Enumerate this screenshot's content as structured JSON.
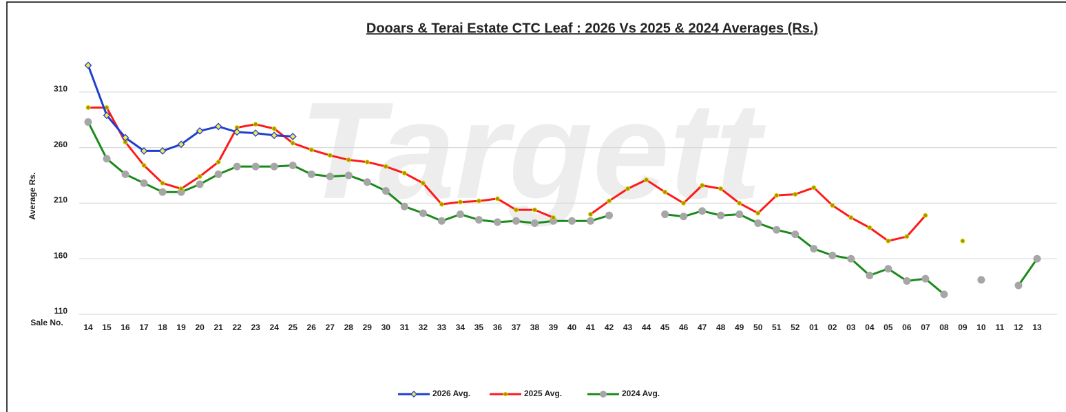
{
  "chart_data": {
    "type": "line",
    "title": "Dooars & Terai Estate CTC Leaf : 2026 Vs 2025 & 2024 Averages (Rs.)",
    "watermark": "Targett",
    "ylabel": "Average Rs.",
    "xlabel": "Sale No.",
    "categories": [
      "14",
      "15",
      "16",
      "17",
      "18",
      "19",
      "20",
      "21",
      "22",
      "23",
      "24",
      "25",
      "26",
      "27",
      "28",
      "29",
      "30",
      "31",
      "32",
      "33",
      "34",
      "35",
      "36",
      "37",
      "38",
      "39",
      "40",
      "41",
      "42",
      "43",
      "44",
      "45",
      "46",
      "47",
      "48",
      "49",
      "50",
      "51",
      "52",
      "01",
      "02",
      "03",
      "04",
      "05",
      "06",
      "07",
      "08",
      "09",
      "10",
      "11",
      "12",
      "13"
    ],
    "ylim": [
      110,
      360
    ],
    "yticks": [
      110,
      160,
      210,
      260,
      310
    ],
    "grid": true,
    "legend": "bottom",
    "series": [
      {
        "name": "2026 Avg.",
        "color": "#1f3fd0",
        "marker": "diamond",
        "marker_color": "#f5e94a",
        "values": [
          334,
          289,
          269,
          257,
          257,
          263,
          275,
          279,
          274,
          273,
          271,
          270,
          null,
          null,
          null,
          null,
          null,
          null,
          null,
          null,
          null,
          null,
          null,
          null,
          null,
          null,
          null,
          null,
          null,
          null,
          null,
          null,
          null,
          null,
          null,
          null,
          null,
          null,
          null,
          null,
          null,
          null,
          null,
          null,
          null,
          null,
          null,
          null,
          null,
          null,
          null,
          null
        ]
      },
      {
        "name": "2025 Avg.",
        "color": "#ff1a1a",
        "marker": "dot",
        "marker_color": "#9a9a00",
        "values": [
          296,
          296,
          265,
          244,
          228,
          223,
          234,
          247,
          278,
          281,
          277,
          264,
          258,
          253,
          249,
          247,
          243,
          237,
          228,
          209,
          211,
          212,
          214,
          204,
          204,
          197,
          null,
          200,
          212,
          223,
          231,
          220,
          210,
          226,
          223,
          210,
          201,
          217,
          218,
          224,
          208,
          197,
          188,
          176,
          180,
          199,
          null,
          176,
          null,
          null,
          null,
          null
        ]
      },
      {
        "name": "2024 Avg.",
        "color": "#1a8a1a",
        "marker": "circle",
        "marker_color": "#a6a6a6",
        "values": [
          283,
          250,
          236,
          228,
          220,
          220,
          227,
          236,
          243,
          243,
          243,
          244,
          236,
          234,
          235,
          229,
          221,
          207,
          201,
          194,
          200,
          195,
          193,
          194,
          192,
          194,
          194,
          194,
          199,
          null,
          null,
          200,
          198,
          203,
          199,
          200,
          192,
          186,
          182,
          169,
          163,
          160,
          145,
          151,
          140,
          142,
          128,
          null,
          141,
          null,
          136,
          160
        ]
      }
    ]
  }
}
